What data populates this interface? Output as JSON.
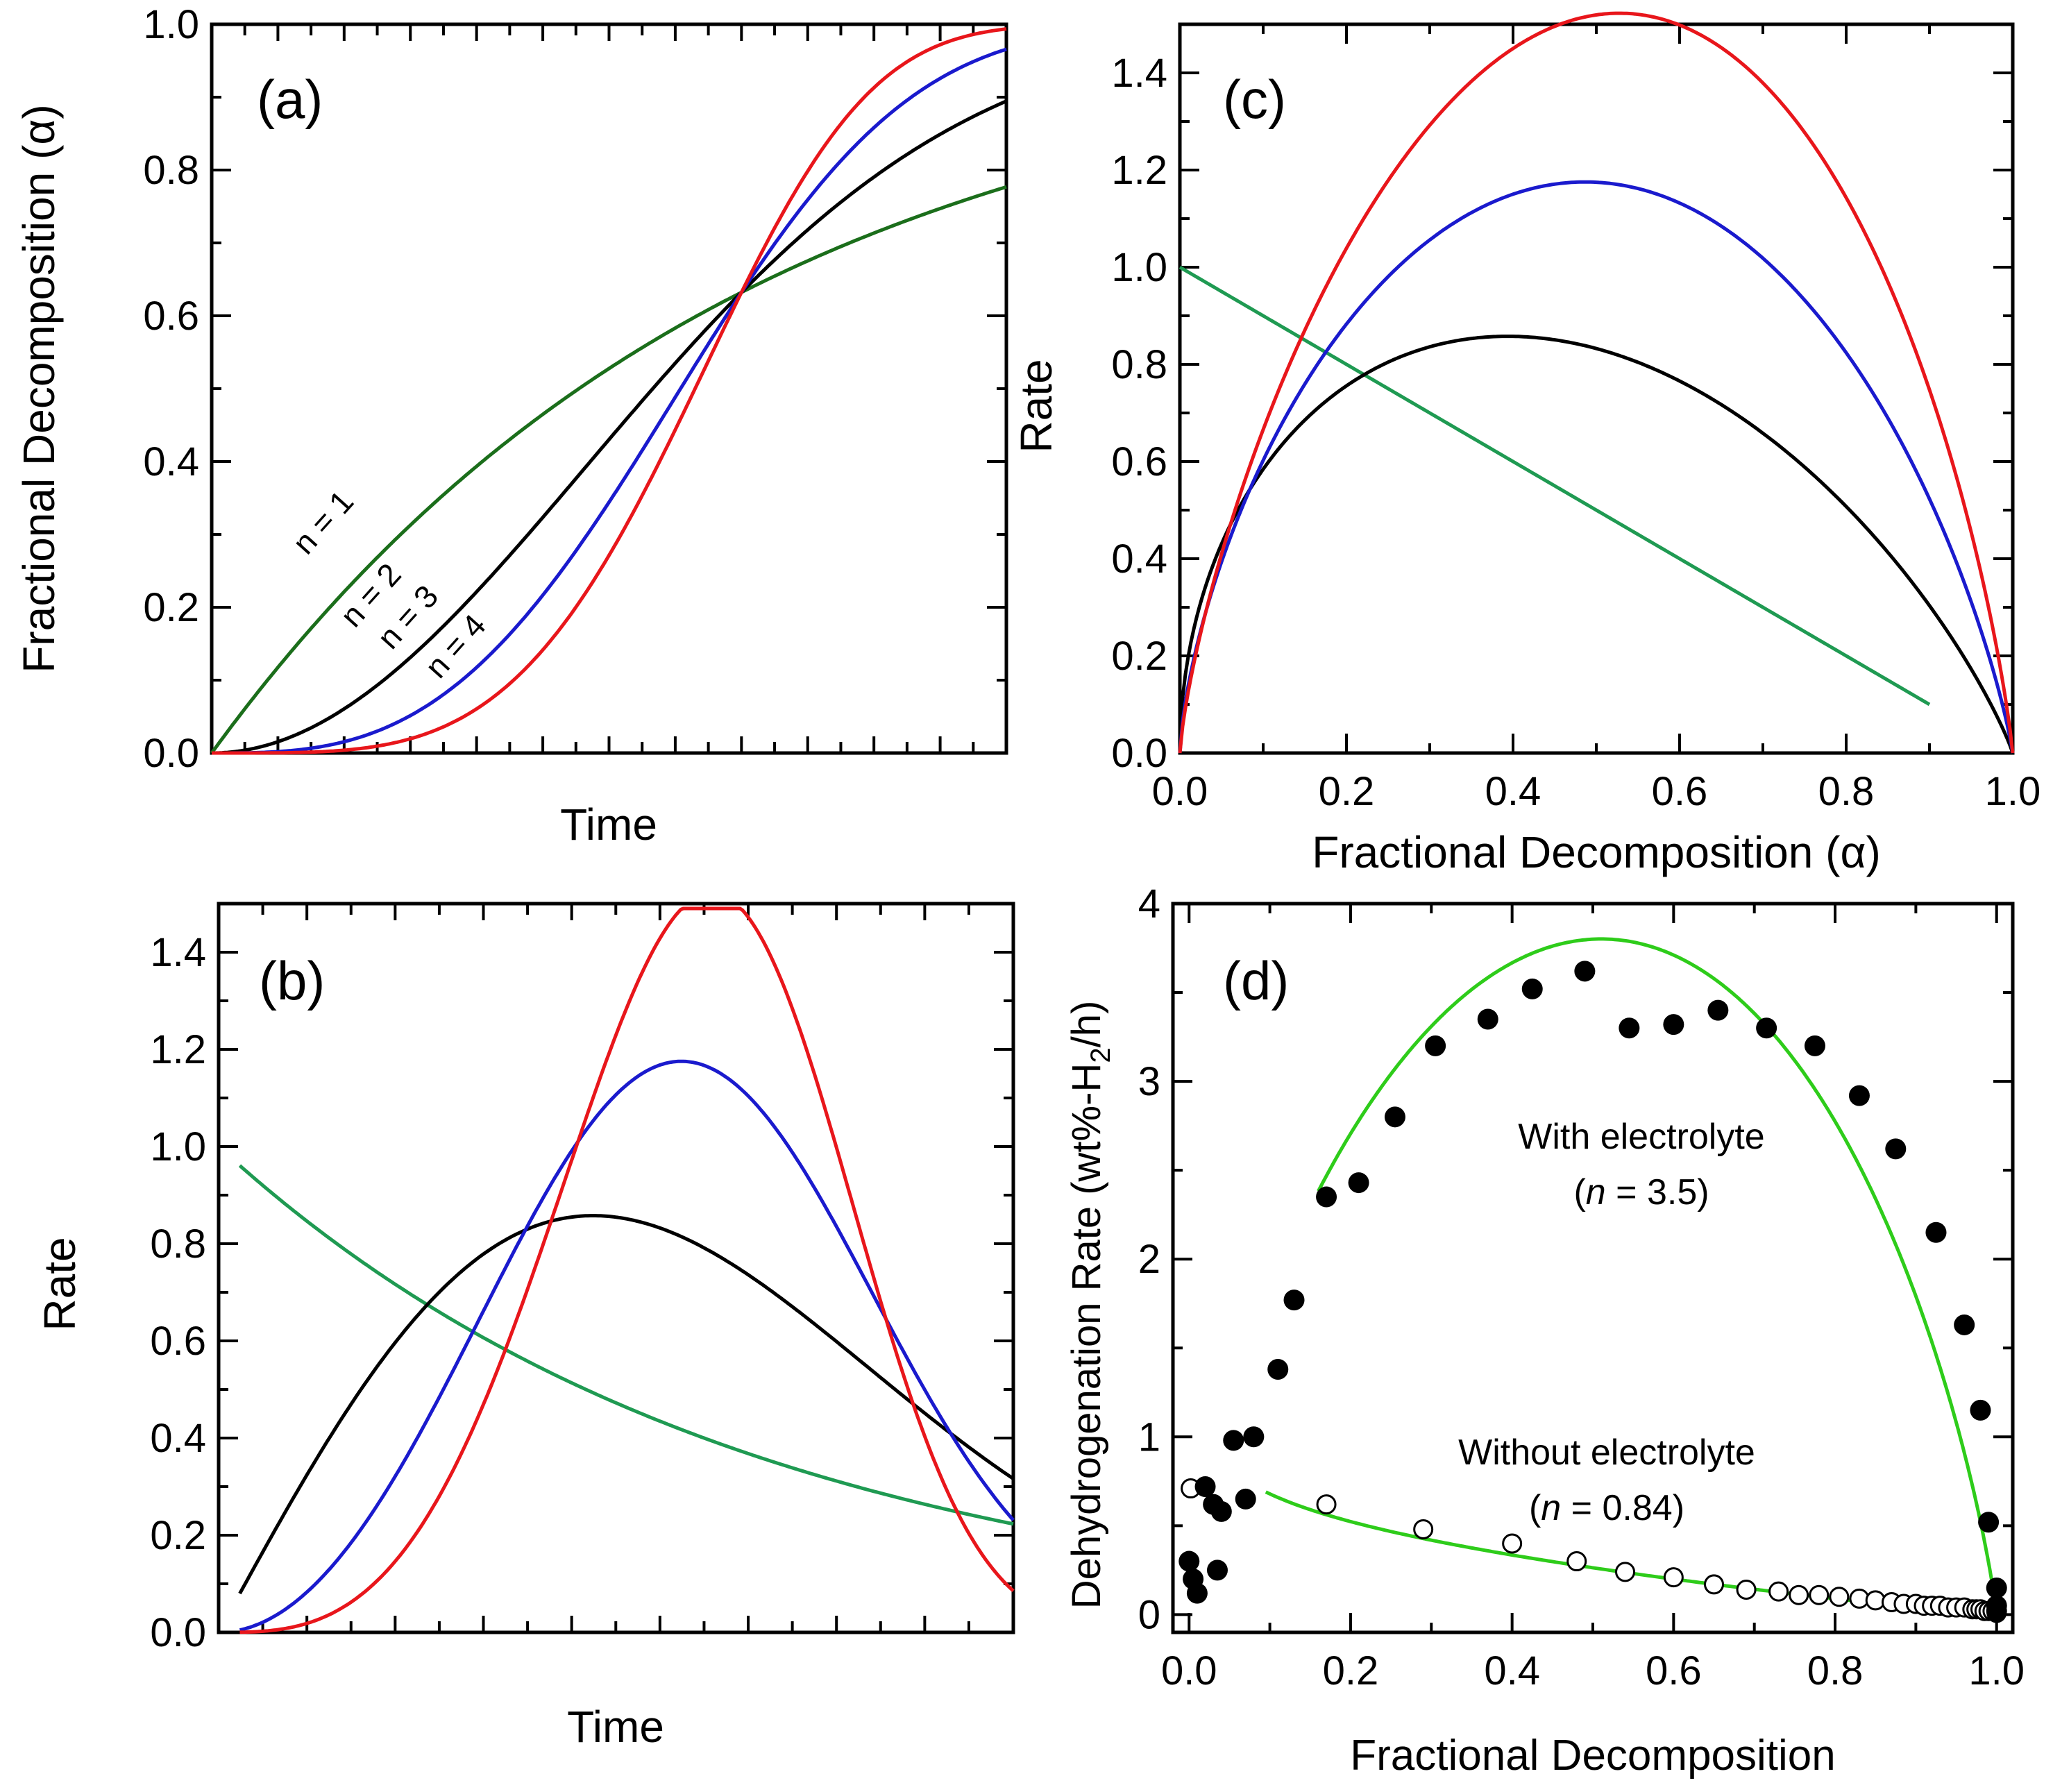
{
  "chart_data": [
    {
      "panel": "a",
      "type": "line",
      "label": "(a)",
      "xlabel": "Time",
      "ylabel": "Fractional Decomposition (α)",
      "xlim": [
        0,
        1.5
      ],
      "ylim": [
        0,
        1
      ],
      "xticks_major": [],
      "xticks_minor_step": 0.0625,
      "yticks": [
        0.0,
        0.2,
        0.4,
        0.6,
        0.8,
        1.0
      ],
      "ytick_labels": [
        "0.0",
        "0.2",
        "0.4",
        "0.6",
        "0.8",
        "1.0"
      ],
      "series": [
        {
          "name": "n = 1",
          "color": "#1b6e1b",
          "n": 1
        },
        {
          "name": "n = 2",
          "color": "#000000",
          "n": 2
        },
        {
          "name": "n = 3",
          "color": "#1a1acd",
          "n": 3
        },
        {
          "name": "n = 4",
          "color": "#e8161b",
          "n": 4
        }
      ],
      "annotations": [
        {
          "text": "n = 1",
          "color": "#1b6e1b",
          "x": 0.18,
          "y": 0.27
        },
        {
          "text": "n = 2",
          "color": "#000000",
          "x": 0.27,
          "y": 0.17
        },
        {
          "text": "n = 3",
          "color": "#1a1acd",
          "x": 0.34,
          "y": 0.14
        },
        {
          "text": "n = 4",
          "color": "#e8161b",
          "x": 0.43,
          "y": 0.1
        }
      ]
    },
    {
      "panel": "b",
      "type": "line",
      "label": "(b)",
      "xlabel": "Time",
      "ylabel": "Rate",
      "xlim": [
        0,
        1.5
      ],
      "ylim": [
        0,
        1.5
      ],
      "xticks_minor_step": 0.0833,
      "yticks": [
        0.0,
        0.2,
        0.4,
        0.6,
        0.8,
        1.0,
        1.2,
        1.4
      ],
      "ytick_labels": [
        "0.0",
        "0.2",
        "0.4",
        "0.6",
        "0.8",
        "1.0",
        "1.2",
        "1.4"
      ],
      "series": [
        {
          "name": "n = 1",
          "color": "#1f9a52",
          "n": 1
        },
        {
          "name": "n = 2",
          "color": "#000000",
          "n": 2
        },
        {
          "name": "n = 3",
          "color": "#1a1acd",
          "n": 3
        },
        {
          "name": "n = 4",
          "color": "#e8161b",
          "n": 4
        }
      ]
    },
    {
      "panel": "c",
      "type": "line",
      "label": "(c)",
      "xlabel": "Fractional Decomposition (α)",
      "ylabel": "Rate",
      "xlim": [
        0,
        1
      ],
      "ylim": [
        0,
        1.5
      ],
      "xticks": [
        0.0,
        0.2,
        0.4,
        0.6,
        0.8,
        1.0
      ],
      "xtick_labels": [
        "0.0",
        "0.2",
        "0.4",
        "0.6",
        "0.8",
        "1.0"
      ],
      "yticks": [
        0.0,
        0.2,
        0.4,
        0.6,
        0.8,
        1.0,
        1.2,
        1.4
      ],
      "ytick_labels": [
        "0.0",
        "0.2",
        "0.4",
        "0.6",
        "0.8",
        "1.0",
        "1.2",
        "1.4"
      ],
      "series": [
        {
          "name": "n = 1",
          "color": "#1f9a52",
          "n": 1
        },
        {
          "name": "n = 2",
          "color": "#000000",
          "n": 2
        },
        {
          "name": "n = 3",
          "color": "#1a1acd",
          "n": 3
        },
        {
          "name": "n = 4",
          "color": "#e8161b",
          "n": 4
        }
      ]
    },
    {
      "panel": "d",
      "type": "scatter",
      "label": "(d)",
      "xlabel": "Fractional Decomposition",
      "ylabel": "Dehydrogenation Rate (wt%-H₂/h)",
      "xlim": [
        -0.02,
        1.02
      ],
      "ylim": [
        -0.1,
        4.0
      ],
      "xticks": [
        0.0,
        0.2,
        0.4,
        0.6,
        0.8,
        1.0
      ],
      "xtick_labels": [
        "0.0",
        "0.2",
        "0.4",
        "0.6",
        "0.8",
        "1.0"
      ],
      "yticks": [
        0,
        1,
        2,
        3,
        4
      ],
      "ytick_labels": [
        "0",
        "1",
        "2",
        "3",
        "4"
      ],
      "fit_color": "#2ecc1a",
      "with_electrolyte": {
        "label_line1": "With electrolyte",
        "label_line2": "(n = 3.5)",
        "x": [
          0.0,
          0.005,
          0.01,
          0.02,
          0.03,
          0.035,
          0.04,
          0.055,
          0.08,
          0.07,
          0.11,
          0.13,
          0.17,
          0.21,
          0.255,
          0.305,
          0.37,
          0.425,
          0.49,
          0.545,
          0.6,
          0.655,
          0.715,
          0.775,
          0.83,
          0.875,
          0.925,
          0.96,
          0.98,
          0.99,
          1.0,
          1.0,
          1.0
        ],
        "y": [
          0.3,
          0.2,
          0.12,
          0.72,
          0.62,
          0.25,
          0.58,
          0.98,
          1.0,
          0.65,
          1.38,
          1.77,
          2.35,
          2.43,
          2.8,
          3.2,
          3.35,
          3.52,
          3.62,
          3.3,
          3.32,
          3.4,
          3.3,
          3.2,
          2.92,
          2.62,
          2.15,
          1.63,
          1.15,
          0.52,
          0.15,
          0.05,
          0.02
        ],
        "fit": {
          "xmin": 0.16,
          "xmax": 1.0,
          "ymax": 3.8,
          "x_peak": 0.5
        }
      },
      "without_electrolyte": {
        "label_line1": "Without electrolyte",
        "label_line2": "(n = 0.84)",
        "x": [
          0.002,
          0.17,
          0.29,
          0.4,
          0.48,
          0.54,
          0.6,
          0.65,
          0.69,
          0.73,
          0.755,
          0.78,
          0.805,
          0.83,
          0.85,
          0.87,
          0.885,
          0.9,
          0.91,
          0.92,
          0.93,
          0.94,
          0.95,
          0.96,
          0.97,
          0.975,
          0.98,
          0.985,
          0.99,
          0.995,
          1.0
        ],
        "y": [
          0.71,
          0.62,
          0.48,
          0.4,
          0.3,
          0.24,
          0.21,
          0.17,
          0.14,
          0.13,
          0.11,
          0.11,
          0.1,
          0.09,
          0.08,
          0.07,
          0.06,
          0.06,
          0.05,
          0.05,
          0.05,
          0.04,
          0.04,
          0.04,
          0.03,
          0.03,
          0.03,
          0.02,
          0.02,
          0.02,
          0.01
        ],
        "fit": {
          "xmin": 0.095,
          "xmax": 1.0,
          "y0": 0.69
        }
      }
    }
  ]
}
